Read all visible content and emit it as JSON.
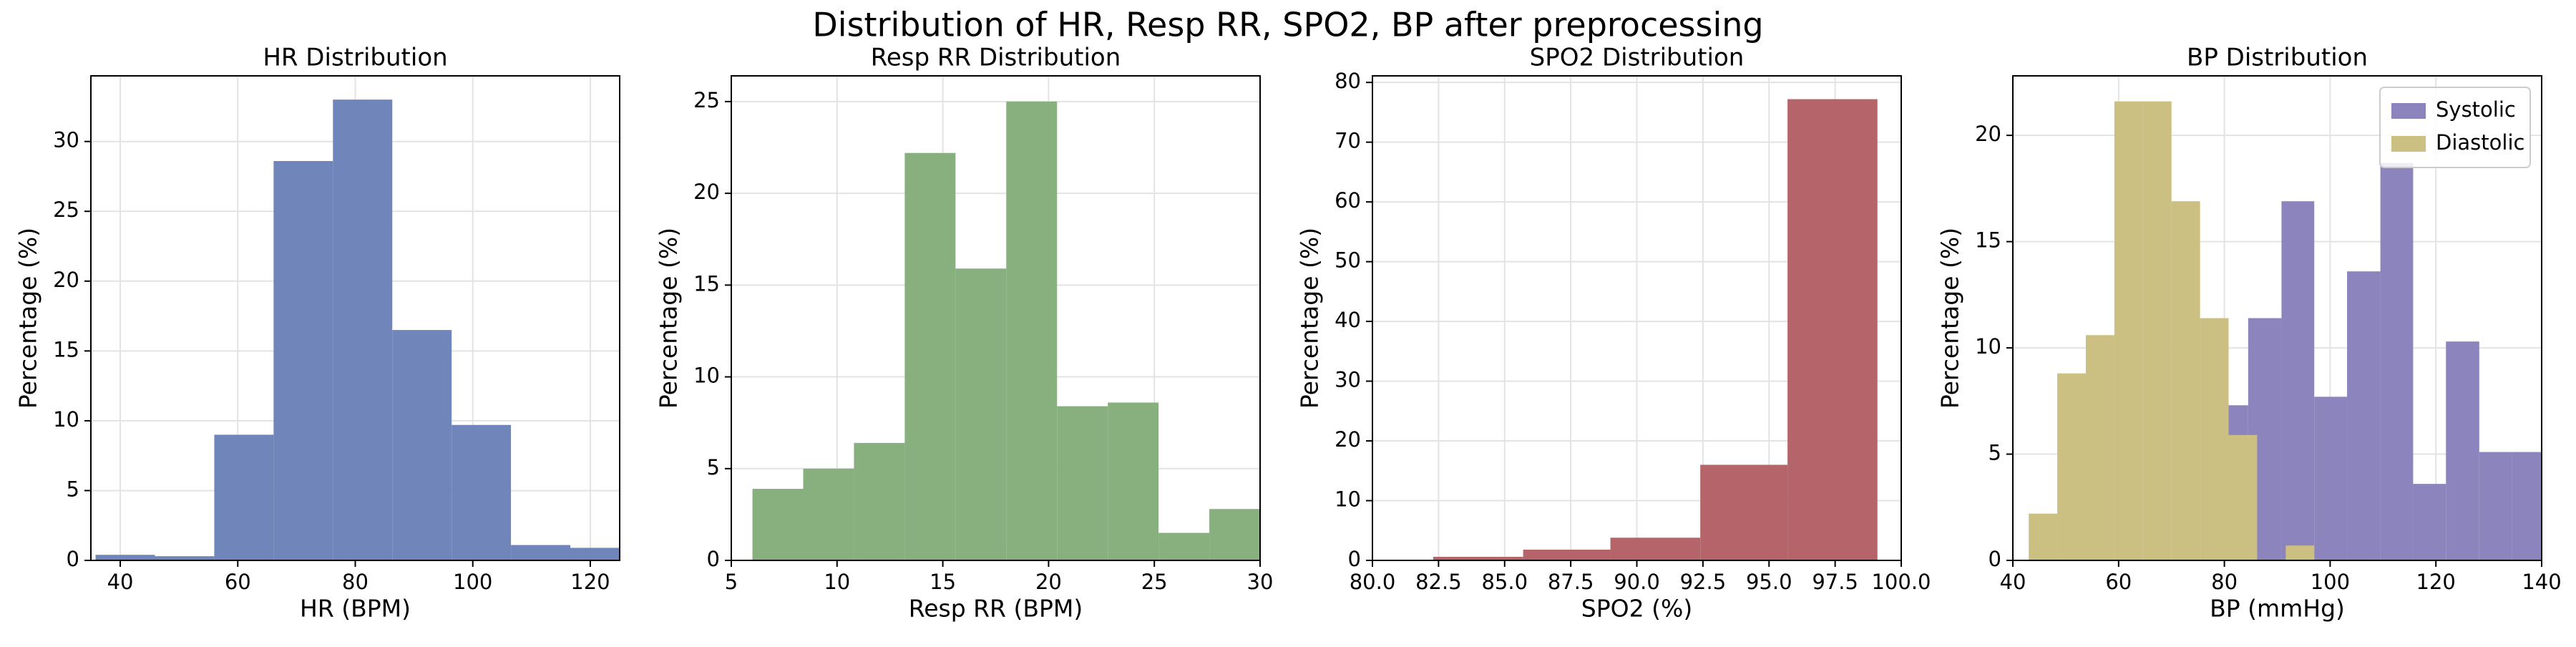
{
  "title": "Distribution of HR, Resp RR, SPO2, BP after preprocessing",
  "chart_data": [
    {
      "type": "histogram",
      "title": "HR Distribution",
      "x_label": "HR (BPM)",
      "y_label": "Percentage (%)",
      "bins": [
        35.8,
        45.9,
        56.0,
        66.1,
        76.2,
        86.3,
        96.4,
        106.5,
        116.6,
        126.7
      ],
      "values": [
        0.4,
        0.3,
        9.0,
        28.6,
        33.0,
        16.5,
        9.7,
        1.1,
        0.9
      ],
      "color": "#7085ba",
      "xlim": [
        35,
        125
      ],
      "xticks": [
        40,
        60,
        80,
        100,
        120
      ],
      "ylim": [
        0,
        34.7
      ],
      "yticks": [
        0,
        5,
        10,
        15,
        20,
        25,
        30
      ],
      "grid": true
    },
    {
      "type": "histogram",
      "title": "Resp RR Distribution",
      "x_label": "Resp RR (BPM)",
      "y_label": "Percentage (%)",
      "bins": [
        6.0,
        8.4,
        10.8,
        13.2,
        15.6,
        18.0,
        20.4,
        22.8,
        25.2,
        27.6,
        30.0
      ],
      "values": [
        3.9,
        5.0,
        6.4,
        22.2,
        15.9,
        25.0,
        8.4,
        8.6,
        1.5,
        2.8
      ],
      "color": "#88b07e",
      "xlim": [
        5,
        30
      ],
      "xticks": [
        5,
        10,
        15,
        20,
        25,
        30
      ],
      "ylim": [
        0,
        26.4
      ],
      "yticks": [
        0,
        5,
        10,
        15,
        20,
        25
      ],
      "grid": true
    },
    {
      "type": "histogram",
      "title": "SPO2 Distribution",
      "x_label": "SPO2 (%)",
      "y_label": "Percentage (%)",
      "bins": [
        79.0,
        82.3,
        85.7,
        89.0,
        92.4,
        95.7,
        99.1
      ],
      "values": [
        0.1,
        0.6,
        1.8,
        3.8,
        16.0,
        77.2
      ],
      "color": "#b5646a",
      "xlim": [
        80,
        100
      ],
      "xticks": [
        {
          "value": 80,
          "label": "80.0"
        },
        {
          "value": 82.5,
          "label": "82.5"
        },
        {
          "value": 85,
          "label": "85.0"
        },
        {
          "value": 87.5,
          "label": "87.5"
        },
        {
          "value": 90,
          "label": "90.0"
        },
        {
          "value": 92.5,
          "label": "92.5"
        },
        {
          "value": 95,
          "label": "95.0"
        },
        {
          "value": 97.5,
          "label": "97.5"
        },
        {
          "value": 100,
          "label": "100.0"
        }
      ],
      "ylim": [
        0,
        81.1
      ],
      "yticks": [
        0,
        10,
        20,
        30,
        40,
        50,
        60,
        70,
        80
      ],
      "grid": true
    },
    {
      "type": "histogram",
      "title": "BP Distribution",
      "x_label": "BP (mmHg)",
      "y_label": "Percentage (%)",
      "series": [
        {
          "name": "Systolic",
          "color": "#8c84bd",
          "bins": [
            78.3,
            84.5,
            90.8,
            97.0,
            103.2,
            109.5,
            115.7,
            121.9,
            128.2,
            134.4,
            140.6
          ],
          "values": [
            7.3,
            11.4,
            16.9,
            7.7,
            13.6,
            18.7,
            3.6,
            10.3,
            5.1,
            5.1
          ]
        },
        {
          "name": "Diastolic",
          "color": "#cbbf82",
          "bins": [
            43.0,
            48.4,
            53.8,
            59.2,
            64.6,
            70.0,
            75.4,
            80.8,
            86.2,
            91.6,
            97.0
          ],
          "values": [
            2.2,
            8.8,
            10.6,
            21.6,
            21.6,
            16.9,
            11.4,
            5.9,
            0,
            0.7
          ]
        }
      ],
      "xlim": [
        40,
        140
      ],
      "xticks": [
        40,
        60,
        80,
        100,
        120,
        140
      ],
      "ylim": [
        0,
        22.8
      ],
      "yticks": [
        0,
        5,
        10,
        15,
        20
      ],
      "grid": true,
      "legend": "upper right"
    }
  ]
}
